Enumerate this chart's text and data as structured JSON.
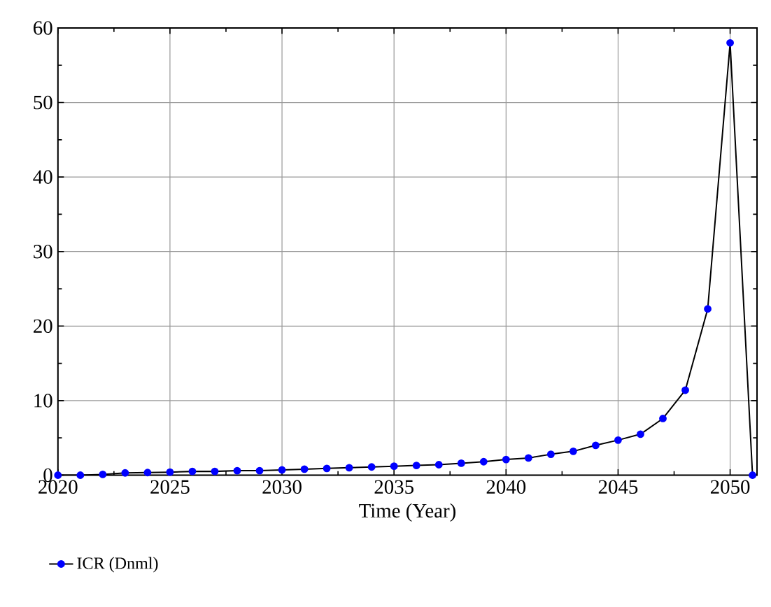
{
  "chart_data": {
    "type": "line",
    "xlabel": "Time (Year)",
    "x": [
      2020,
      2021,
      2022,
      2023,
      2024,
      2025,
      2026,
      2027,
      2028,
      2029,
      2030,
      2031,
      2032,
      2033,
      2034,
      2035,
      2036,
      2037,
      2038,
      2039,
      2040,
      2041,
      2042,
      2043,
      2044,
      2045,
      2046,
      2047,
      2048,
      2049,
      2050,
      2051
    ],
    "series": [
      {
        "name": "ICR (Dnml)",
        "color": "#0000ff",
        "values": [
          0,
          0,
          0.1,
          0.3,
          0.35,
          0.4,
          0.5,
          0.5,
          0.6,
          0.6,
          0.7,
          0.8,
          0.9,
          1.0,
          1.1,
          1.2,
          1.3,
          1.4,
          1.6,
          1.8,
          2.1,
          2.3,
          2.8,
          3.2,
          4.0,
          4.7,
          5.5,
          7.6,
          11.4,
          22.3,
          58,
          0
        ]
      }
    ],
    "xlim": [
      2020,
      2051.2
    ],
    "ylim": [
      0,
      60
    ],
    "xticks": [
      2020,
      2025,
      2030,
      2035,
      2040,
      2045,
      2050
    ],
    "yticks": [
      0,
      10,
      20,
      30,
      40,
      50,
      60
    ],
    "grid": true,
    "legend": "bottom left",
    "marker": "circle",
    "line_style": "solid"
  }
}
